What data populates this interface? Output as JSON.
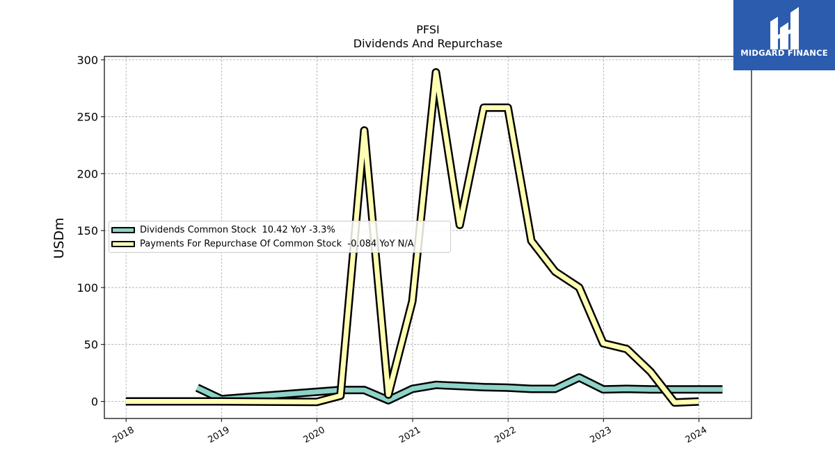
{
  "logo": {
    "text": "MIDGARD FINANCE"
  },
  "chart_data": {
    "type": "line",
    "title": "PFSI",
    "subtitle": "Dividends And Repurchase",
    "xlabel": "",
    "ylabel": "USDm",
    "xlim": [
      "2017-10-10",
      "2024-07-20"
    ],
    "ylim": [
      -15,
      303
    ],
    "yticks": [
      0,
      50,
      100,
      150,
      200,
      250,
      300
    ],
    "xticks": [
      "2018",
      "2019",
      "2020",
      "2021",
      "2022",
      "2023",
      "2024"
    ],
    "grid": true,
    "legend_position": "center-left",
    "series": [
      {
        "name": "Dividends Common Stock  10.42 YoY -3.3%",
        "color": "#8dd3c7",
        "points": [
          [
            "2018-09-30",
            12
          ],
          [
            "2018-12-31",
            2
          ],
          [
            "2020-03-31",
            10
          ],
          [
            "2020-06-30",
            10
          ],
          [
            "2020-09-30",
            1
          ],
          [
            "2020-12-31",
            11
          ],
          [
            "2021-03-31",
            14.5
          ],
          [
            "2021-06-30",
            13.5
          ],
          [
            "2021-09-30",
            12.5
          ],
          [
            "2021-12-31",
            12
          ],
          [
            "2022-03-31",
            11
          ],
          [
            "2022-06-30",
            11
          ],
          [
            "2022-09-30",
            21
          ],
          [
            "2022-12-31",
            10.5
          ],
          [
            "2023-03-31",
            11
          ],
          [
            "2023-06-30",
            10.5
          ],
          [
            "2023-09-30",
            10.5
          ],
          [
            "2023-12-31",
            10.5
          ],
          [
            "2024-03-31",
            10.5
          ]
        ]
      },
      {
        "name": "Payments For Repurchase Of Common Stock  -0.084 YoY N/A",
        "color": "#ffffb3",
        "points": [
          [
            "2017-12-31",
            0
          ],
          [
            "2018-12-31",
            0
          ],
          [
            "2019-12-31",
            -0.5
          ],
          [
            "2020-03-31",
            5
          ],
          [
            "2020-06-30",
            238
          ],
          [
            "2020-09-30",
            6
          ],
          [
            "2020-12-31",
            88
          ],
          [
            "2021-03-31",
            289
          ],
          [
            "2021-06-30",
            155
          ],
          [
            "2021-09-30",
            258
          ],
          [
            "2021-12-31",
            258
          ],
          [
            "2022-03-31",
            141
          ],
          [
            "2022-06-30",
            114
          ],
          [
            "2022-09-30",
            100
          ],
          [
            "2022-12-31",
            51
          ],
          [
            "2023-03-31",
            46
          ],
          [
            "2023-06-30",
            26
          ],
          [
            "2023-09-30",
            -1
          ],
          [
            "2023-12-31",
            -0.084
          ]
        ]
      }
    ]
  }
}
